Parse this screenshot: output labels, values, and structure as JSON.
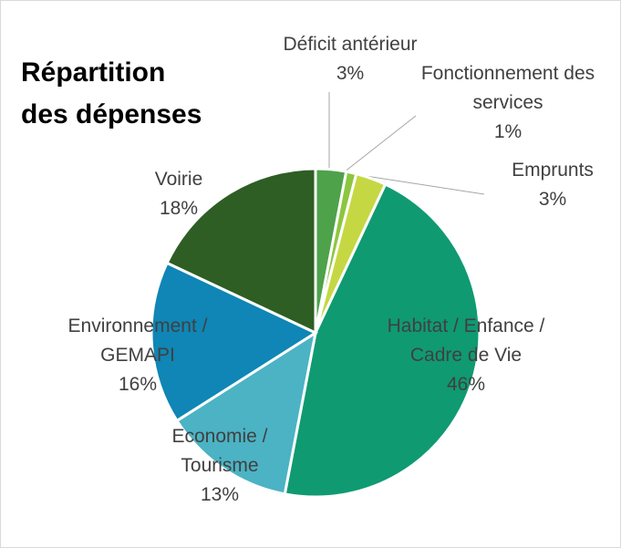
{
  "chart_data": {
    "type": "pie",
    "title": "Répartition des dépenses",
    "categories": [
      "Déficit antérieur",
      "Fonctionnement des services",
      "Emprunts",
      "Habitat / Enfance / Cadre de Vie",
      "Economie / Tourisme",
      "Environnement / GEMAPI",
      "Voirie"
    ],
    "values": [
      3,
      1,
      3,
      46,
      13,
      16,
      18
    ],
    "value_labels": [
      "3%",
      "1%",
      "3%",
      "46%",
      "13%",
      "16%",
      "18%"
    ],
    "colors": [
      "#4ea24a",
      "#8cc63f",
      "#c5d843",
      "#0f9a72",
      "#4bb3c4",
      "#0f86b5",
      "#2e5e24"
    ]
  }
}
